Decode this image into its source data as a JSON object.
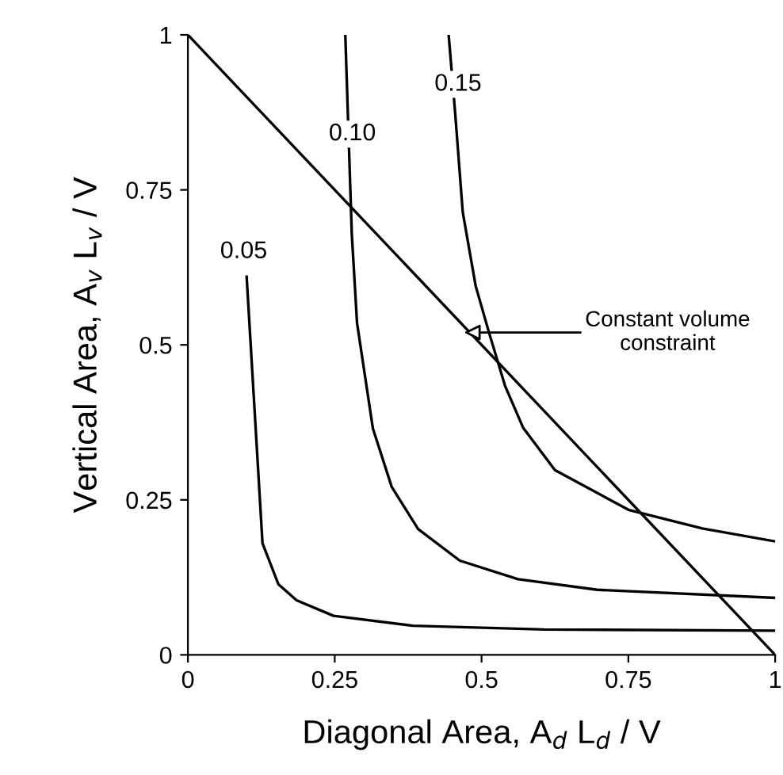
{
  "chart_data": {
    "type": "line",
    "xlabel": "Diagonal Area, A$_{d}$ L$_{d}$ / V",
    "ylabel": "Vertical Area, A$_{v}$ L$_{v}$ / V",
    "xlim": [
      0,
      1
    ],
    "ylim": [
      0,
      1
    ],
    "xticks": [
      0,
      0.25,
      0.5,
      0.75,
      1
    ],
    "yticks": [
      0,
      0.25,
      0.5,
      0.75,
      1
    ],
    "grid": false,
    "legend": false,
    "marker": "none",
    "line_style": "solid",
    "series": [
      {
        "color": "#000000",
        "x": [
          0.1,
          0.127,
          0.154,
          0.185,
          0.248,
          0.383,
          0.607,
          1.0
        ],
        "values": [
          0.61,
          0.18,
          0.114,
          0.088,
          0.063,
          0.047,
          0.041,
          0.039
        ]
      },
      {
        "color": "#000000",
        "x": [
          0.268,
          0.279,
          0.288,
          0.315,
          0.347,
          0.392,
          0.463,
          0.562,
          0.697,
          1.0
        ],
        "values": [
          1.0,
          0.68,
          0.535,
          0.365,
          0.271,
          0.203,
          0.152,
          0.122,
          0.105,
          0.092
        ]
      },
      {
        "color": "#000000",
        "x": [
          0.444,
          0.455,
          0.468,
          0.49,
          0.513,
          0.54,
          0.571,
          0.625,
          0.75,
          0.876,
          1.0
        ],
        "values": [
          1.0,
          0.875,
          0.714,
          0.595,
          0.519,
          0.434,
          0.366,
          0.298,
          0.234,
          0.204,
          0.183
        ]
      },
      {
        "color": "#000000",
        "x": [
          0,
          1
        ],
        "values": [
          1,
          0
        ]
      }
    ],
    "annotations": [
      {
        "text": "0.05",
        "x": 0.095,
        "y": 0.65
      },
      {
        "text": "0.10",
        "x": 0.28,
        "y": 0.84
      },
      {
        "text": "0.15",
        "x": 0.46,
        "y": 0.92
      },
      {
        "text": "Constant volume\nconstraint",
        "x": 0.47,
        "y": 0.52
      }
    ]
  }
}
